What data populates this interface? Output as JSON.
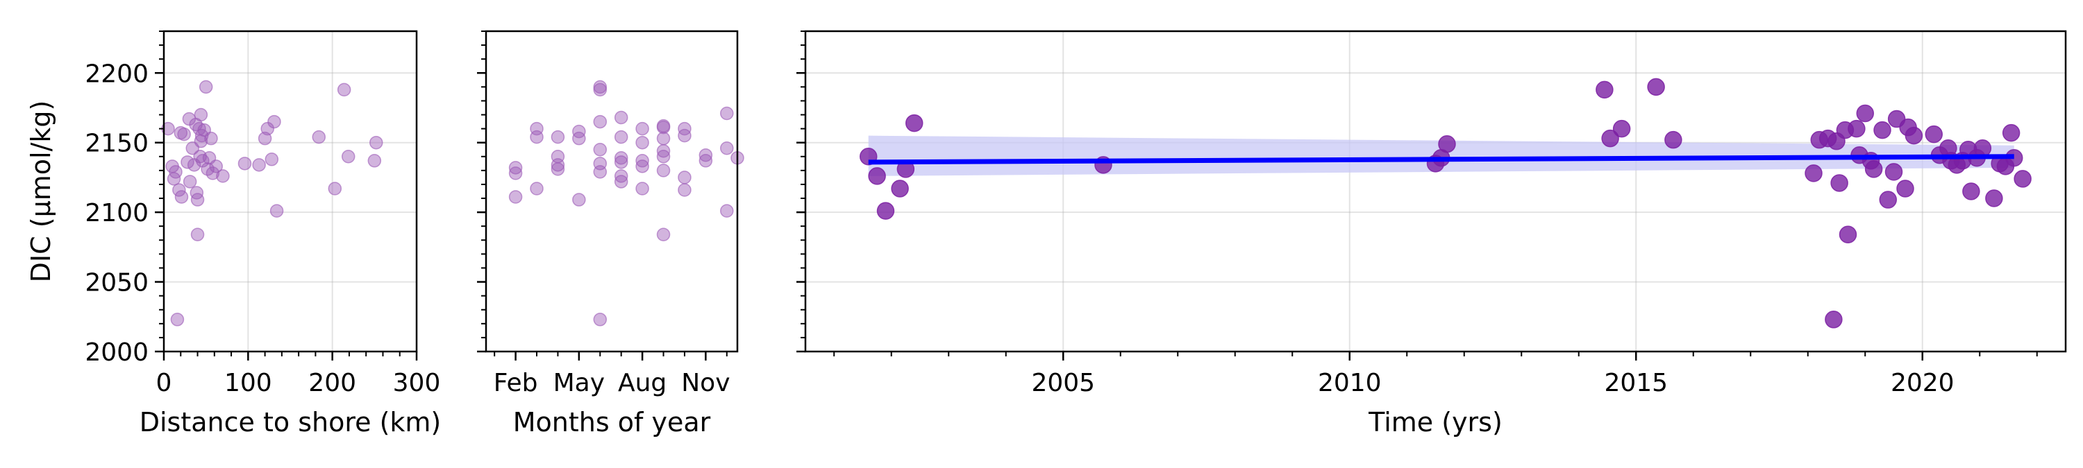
{
  "colors": {
    "point_faint": "#9b59b6",
    "point_strong": "#7b1fa2",
    "trend_line": "#0000ff",
    "confidence_band": "#c8c8f5"
  },
  "chart_data": [
    {
      "type": "scatter",
      "xlabel": "Distance to shore (km)",
      "ylabel": "DIC (µmol/kg)",
      "xlim": [
        0,
        300
      ],
      "ylim": [
        2000,
        2230
      ],
      "xticks": [
        0,
        100,
        200,
        300
      ],
      "yticks": [
        2000,
        2050,
        2100,
        2150,
        2200
      ],
      "tick_labels_x": [
        "0",
        "100",
        "200",
        "300"
      ],
      "tick_labels_y": [
        "2000",
        "2050",
        "2100",
        "2150",
        "2200"
      ],
      "grid": true,
      "points": [
        {
          "x": 5,
          "y": 2160
        },
        {
          "x": 10,
          "y": 2133
        },
        {
          "x": 12,
          "y": 2124
        },
        {
          "x": 14,
          "y": 2129
        },
        {
          "x": 16,
          "y": 2023
        },
        {
          "x": 18,
          "y": 2116
        },
        {
          "x": 20,
          "y": 2157
        },
        {
          "x": 21,
          "y": 2111
        },
        {
          "x": 24,
          "y": 2156
        },
        {
          "x": 28,
          "y": 2136
        },
        {
          "x": 30,
          "y": 2167
        },
        {
          "x": 31,
          "y": 2122
        },
        {
          "x": 34,
          "y": 2146
        },
        {
          "x": 36,
          "y": 2134
        },
        {
          "x": 38,
          "y": 2163
        },
        {
          "x": 39,
          "y": 2114
        },
        {
          "x": 40,
          "y": 2084
        },
        {
          "x": 40,
          "y": 2109
        },
        {
          "x": 42,
          "y": 2160
        },
        {
          "x": 43,
          "y": 2140
        },
        {
          "x": 44,
          "y": 2151
        },
        {
          "x": 44,
          "y": 2170
        },
        {
          "x": 45,
          "y": 2155
        },
        {
          "x": 46,
          "y": 2137
        },
        {
          "x": 48,
          "y": 2159
        },
        {
          "x": 50,
          "y": 2190
        },
        {
          "x": 52,
          "y": 2131
        },
        {
          "x": 54,
          "y": 2139
        },
        {
          "x": 56,
          "y": 2153
        },
        {
          "x": 58,
          "y": 2128
        },
        {
          "x": 62,
          "y": 2133
        },
        {
          "x": 70,
          "y": 2126
        },
        {
          "x": 96,
          "y": 2135
        },
        {
          "x": 113,
          "y": 2134
        },
        {
          "x": 120,
          "y": 2153
        },
        {
          "x": 123,
          "y": 2160
        },
        {
          "x": 128,
          "y": 2138
        },
        {
          "x": 131,
          "y": 2165
        },
        {
          "x": 134,
          "y": 2101
        },
        {
          "x": 184,
          "y": 2154
        },
        {
          "x": 203,
          "y": 2117
        },
        {
          "x": 214,
          "y": 2188
        },
        {
          "x": 219,
          "y": 2140
        },
        {
          "x": 250,
          "y": 2137
        },
        {
          "x": 252,
          "y": 2150
        }
      ]
    },
    {
      "type": "scatter",
      "xlabel": "Months of year",
      "xlim": [
        0.6,
        12.5
      ],
      "ylim": [
        2000,
        2230
      ],
      "xticks": [
        2,
        5,
        8,
        11
      ],
      "tick_labels_x": [
        "Feb",
        "May",
        "Aug",
        "Nov"
      ],
      "grid": false,
      "points": [
        {
          "x": 2.0,
          "y": 2128
        },
        {
          "x": 2.0,
          "y": 2132
        },
        {
          "x": 2.0,
          "y": 2111
        },
        {
          "x": 3.0,
          "y": 2160
        },
        {
          "x": 3.0,
          "y": 2154
        },
        {
          "x": 3.0,
          "y": 2117
        },
        {
          "x": 4.0,
          "y": 2131
        },
        {
          "x": 4.0,
          "y": 2140
        },
        {
          "x": 4.0,
          "y": 2154
        },
        {
          "x": 4.0,
          "y": 2134
        },
        {
          "x": 5.0,
          "y": 2158
        },
        {
          "x": 5.0,
          "y": 2153
        },
        {
          "x": 5.0,
          "y": 2109
        },
        {
          "x": 6.0,
          "y": 2129
        },
        {
          "x": 6.0,
          "y": 2135
        },
        {
          "x": 6.0,
          "y": 2145
        },
        {
          "x": 6.0,
          "y": 2165
        },
        {
          "x": 6.0,
          "y": 2188
        },
        {
          "x": 6.0,
          "y": 2190
        },
        {
          "x": 6.0,
          "y": 2023
        },
        {
          "x": 7.0,
          "y": 2154
        },
        {
          "x": 7.0,
          "y": 2139
        },
        {
          "x": 7.0,
          "y": 2136
        },
        {
          "x": 7.0,
          "y": 2122
        },
        {
          "x": 7.0,
          "y": 2168
        },
        {
          "x": 7.0,
          "y": 2126
        },
        {
          "x": 8.0,
          "y": 2160
        },
        {
          "x": 8.0,
          "y": 2150
        },
        {
          "x": 8.0,
          "y": 2137
        },
        {
          "x": 8.0,
          "y": 2117
        },
        {
          "x": 8.0,
          "y": 2133
        },
        {
          "x": 9.0,
          "y": 2162
        },
        {
          "x": 9.0,
          "y": 2161
        },
        {
          "x": 9.0,
          "y": 2153
        },
        {
          "x": 9.0,
          "y": 2144
        },
        {
          "x": 9.0,
          "y": 2140
        },
        {
          "x": 9.0,
          "y": 2130
        },
        {
          "x": 9.0,
          "y": 2084
        },
        {
          "x": 10.0,
          "y": 2160
        },
        {
          "x": 10.0,
          "y": 2155
        },
        {
          "x": 10.0,
          "y": 2125
        },
        {
          "x": 10.0,
          "y": 2116
        },
        {
          "x": 11.0,
          "y": 2141
        },
        {
          "x": 11.0,
          "y": 2137
        },
        {
          "x": 12.0,
          "y": 2171
        },
        {
          "x": 12.0,
          "y": 2146
        },
        {
          "x": 12.0,
          "y": 2101
        },
        {
          "x": 12.5,
          "y": 2139
        }
      ]
    },
    {
      "type": "scatter",
      "xlabel": "Time (yrs)",
      "xlim": [
        2000.5,
        2022.5
      ],
      "ylim": [
        2000,
        2230
      ],
      "xticks": [
        2005,
        2010,
        2015,
        2020
      ],
      "tick_labels_x": [
        "2005",
        "2010",
        "2015",
        "2020"
      ],
      "grid": true,
      "trend": {
        "x": [
          2001.6,
          2021.6
        ],
        "y": [
          2136,
          2140
        ],
        "ci_start": [
          2126,
          2155
        ],
        "ci_end": [
          2132,
          2148
        ]
      },
      "points": [
        {
          "x": 2001.6,
          "y": 2140
        },
        {
          "x": 2001.75,
          "y": 2126
        },
        {
          "x": 2001.9,
          "y": 2101
        },
        {
          "x": 2002.15,
          "y": 2117
        },
        {
          "x": 2002.25,
          "y": 2131
        },
        {
          "x": 2002.4,
          "y": 2164
        },
        {
          "x": 2005.7,
          "y": 2134
        },
        {
          "x": 2011.5,
          "y": 2135
        },
        {
          "x": 2011.6,
          "y": 2139
        },
        {
          "x": 2011.7,
          "y": 2149
        },
        {
          "x": 2014.45,
          "y": 2188
        },
        {
          "x": 2014.55,
          "y": 2153
        },
        {
          "x": 2014.75,
          "y": 2160
        },
        {
          "x": 2015.35,
          "y": 2190
        },
        {
          "x": 2015.65,
          "y": 2152
        },
        {
          "x": 2018.1,
          "y": 2128
        },
        {
          "x": 2018.2,
          "y": 2152
        },
        {
          "x": 2018.35,
          "y": 2153
        },
        {
          "x": 2018.5,
          "y": 2151
        },
        {
          "x": 2018.45,
          "y": 2023
        },
        {
          "x": 2018.55,
          "y": 2121
        },
        {
          "x": 2018.65,
          "y": 2159
        },
        {
          "x": 2018.7,
          "y": 2084
        },
        {
          "x": 2018.85,
          "y": 2160
        },
        {
          "x": 2018.9,
          "y": 2141
        },
        {
          "x": 2019.0,
          "y": 2171
        },
        {
          "x": 2019.1,
          "y": 2137
        },
        {
          "x": 2019.15,
          "y": 2131
        },
        {
          "x": 2019.3,
          "y": 2159
        },
        {
          "x": 2019.4,
          "y": 2109
        },
        {
          "x": 2019.5,
          "y": 2129
        },
        {
          "x": 2019.55,
          "y": 2167
        },
        {
          "x": 2019.7,
          "y": 2117
        },
        {
          "x": 2019.75,
          "y": 2161
        },
        {
          "x": 2019.85,
          "y": 2155
        },
        {
          "x": 2020.2,
          "y": 2156
        },
        {
          "x": 2020.3,
          "y": 2141
        },
        {
          "x": 2020.45,
          "y": 2146
        },
        {
          "x": 2020.5,
          "y": 2137
        },
        {
          "x": 2020.6,
          "y": 2134
        },
        {
          "x": 2020.7,
          "y": 2137
        },
        {
          "x": 2020.8,
          "y": 2145
        },
        {
          "x": 2020.85,
          "y": 2115
        },
        {
          "x": 2020.95,
          "y": 2139
        },
        {
          "x": 2021.05,
          "y": 2146
        },
        {
          "x": 2021.25,
          "y": 2110
        },
        {
          "x": 2021.35,
          "y": 2135
        },
        {
          "x": 2021.45,
          "y": 2133
        },
        {
          "x": 2021.55,
          "y": 2157
        },
        {
          "x": 2021.6,
          "y": 2139
        },
        {
          "x": 2021.75,
          "y": 2124
        }
      ]
    }
  ]
}
